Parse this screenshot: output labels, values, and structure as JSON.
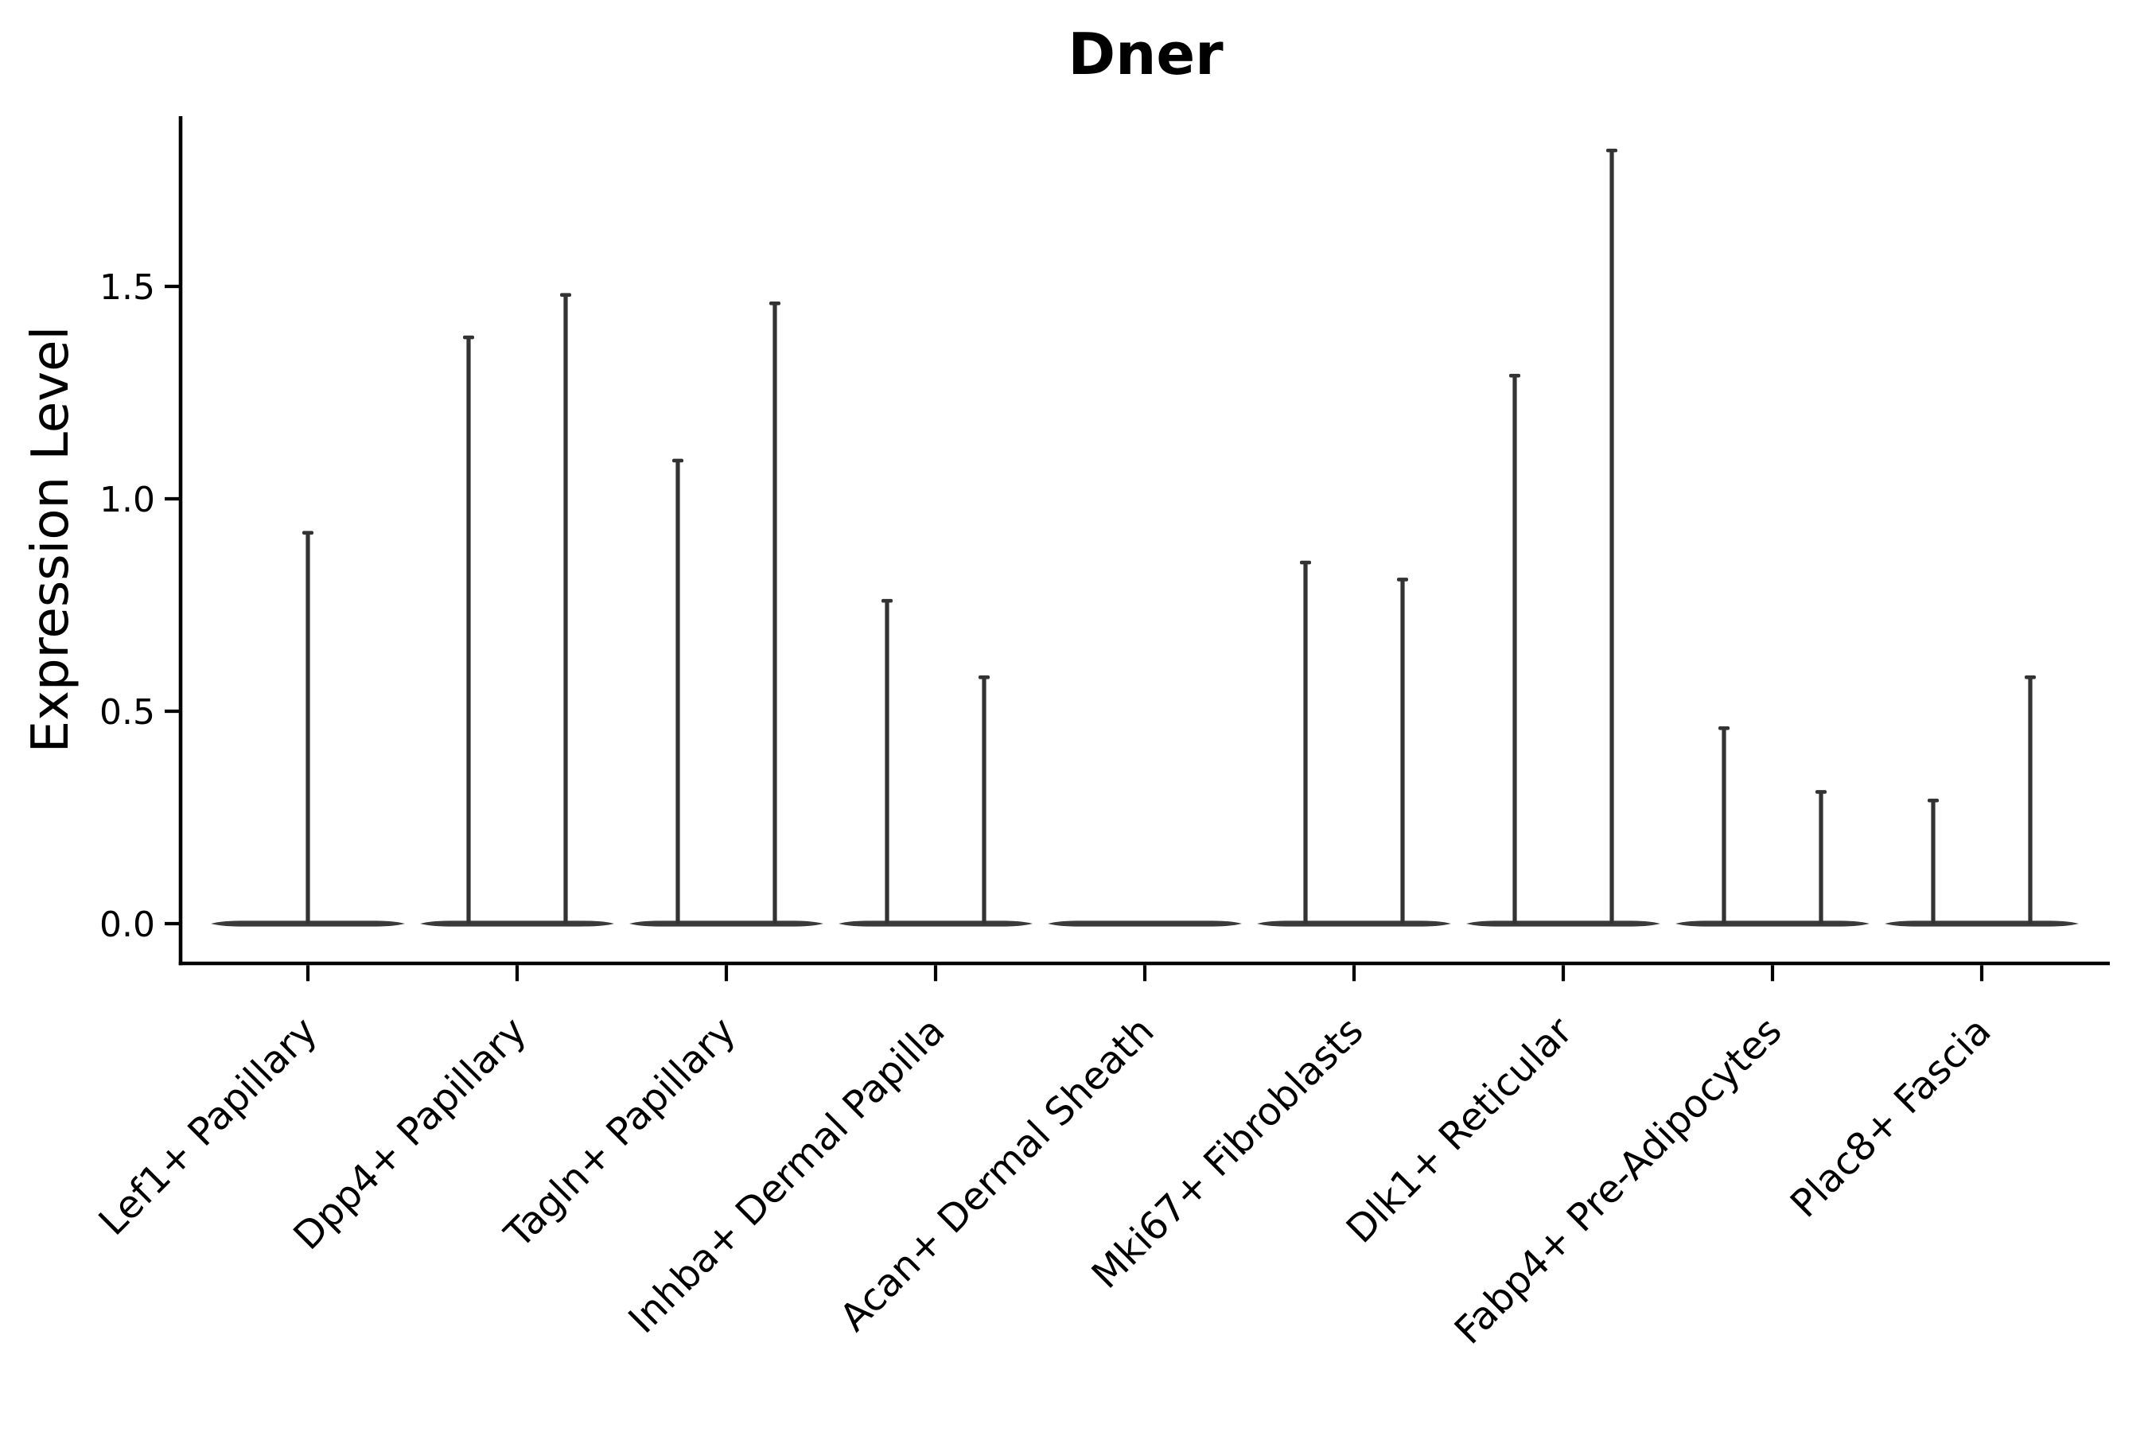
{
  "chart_data": {
    "type": "violin",
    "title": "Dner",
    "xlabel": "",
    "ylabel": "Expression Level",
    "ylim": [
      -0.09,
      1.9
    ],
    "yticks": [
      0.0,
      0.5,
      1.0,
      1.5
    ],
    "ytick_labels": [
      "0.0",
      "0.5",
      "1.0",
      "1.5"
    ],
    "grid": false,
    "legend_position": "none",
    "style_note": "mostly-zero single-cell expression: each violin collapses to a flat tapered bar at 0 with thin vertical spike(s) up to the distribution maximum; capped spike tops; only left and bottom spines",
    "categories": [
      "Lef1+ Papillary",
      "Dpp4+ Papillary",
      "Tagln+ Papillary",
      "Inhba+ Dermal Papilla",
      "Acan+ Dermal Sheath",
      "Mki67+ Fibroblasts",
      "Dlk1+ Reticular",
      "Fabp4+ Pre-Adipocytes",
      "Plac8+ Fascia"
    ],
    "groups": [
      {
        "label": "Lef1+ Papillary",
        "baseline_value": 0.0,
        "spike_maxima": [
          0.92
        ]
      },
      {
        "label": "Dpp4+ Papillary",
        "baseline_value": 0.0,
        "spike_maxima": [
          1.38,
          1.48
        ]
      },
      {
        "label": "Tagln+ Papillary",
        "baseline_value": 0.0,
        "spike_maxima": [
          1.09,
          1.46
        ]
      },
      {
        "label": "Inhba+ Dermal Papilla",
        "baseline_value": 0.0,
        "spike_maxima": [
          0.76,
          0.58
        ]
      },
      {
        "label": "Acan+ Dermal Sheath",
        "baseline_value": 0.0,
        "spike_maxima": []
      },
      {
        "label": "Mki67+ Fibroblasts",
        "baseline_value": 0.0,
        "spike_maxima": [
          0.85,
          0.81
        ]
      },
      {
        "label": "Dlk1+ Reticular",
        "baseline_value": 0.0,
        "spike_maxima": [
          1.29,
          1.82
        ]
      },
      {
        "label": "Fabp4+ Pre-Adipocytes",
        "baseline_value": 0.0,
        "spike_maxima": [
          0.46,
          0.31
        ]
      },
      {
        "label": "Plac8+ Fascia",
        "baseline_value": 0.0,
        "spike_maxima": [
          0.29,
          0.58
        ]
      }
    ],
    "colors": {
      "ink": "#000000",
      "violin": "#333333",
      "violin_base": "#3a3a3a",
      "background": "#ffffff"
    }
  }
}
